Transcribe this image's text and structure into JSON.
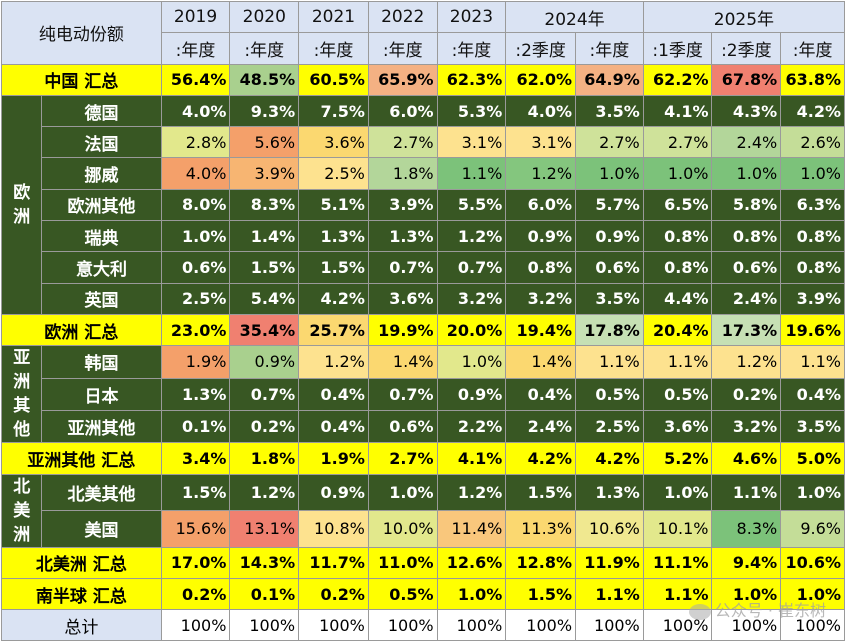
{
  "chart_data": {
    "type": "table",
    "corner": "纯电动份额",
    "year_headers": [
      {
        "label": "2019",
        "span": 1
      },
      {
        "label": "2020",
        "span": 1
      },
      {
        "label": "2021",
        "span": 1
      },
      {
        "label": "2022",
        "span": 1
      },
      {
        "label": "2023",
        "span": 1
      },
      {
        "label": "2024年",
        "span": 2
      },
      {
        "label": "2025年",
        "span": 3
      }
    ],
    "period_headers": [
      ":年度",
      ":年度",
      ":年度",
      ":年度",
      ":年度",
      ":2季度",
      ":年度",
      ":1季度",
      ":2季度",
      ":年度"
    ],
    "rows": [
      {
        "type": "total",
        "label": "中国 汇总",
        "values": [
          "56.4%",
          "48.5%",
          "60.5%",
          "65.9%",
          "62.3%",
          "62.0%",
          "64.9%",
          "62.2%",
          "67.8%",
          "63.8%"
        ],
        "colors": [
          "#ffff00",
          "#a9d08e",
          "#ffff00",
          "#f4b183",
          "#ffff00",
          "#ffff00",
          "#f4b183",
          "#ffff00",
          "#f08070",
          "#ffff00"
        ]
      },
      {
        "type": "detail",
        "region": "欧洲",
        "region_rows": 7,
        "label": "德国",
        "values": [
          "4.0%",
          "9.3%",
          "7.5%",
          "6.0%",
          "5.3%",
          "4.0%",
          "3.5%",
          "4.1%",
          "4.3%",
          "4.2%"
        ],
        "colors": [
          "#385723",
          "#385723",
          "#385723",
          "#385723",
          "#385723",
          "#385723",
          "#385723",
          "#385723",
          "#385723",
          "#385723"
        ]
      },
      {
        "type": "detail",
        "label": "法国",
        "values": [
          "2.8%",
          "5.6%",
          "3.6%",
          "2.7%",
          "3.1%",
          "3.1%",
          "2.7%",
          "2.7%",
          "2.4%",
          "2.6%"
        ],
        "colors": [
          "#e2e88c",
          "#f4a06a",
          "#fbd870",
          "#cfe29a",
          "#fde28f",
          "#fde28f",
          "#cfe29a",
          "#cfe29a",
          "#b3d69a",
          "#c4dd98"
        ]
      },
      {
        "type": "detail",
        "label": "挪威",
        "values": [
          "4.0%",
          "3.9%",
          "2.5%",
          "1.8%",
          "1.1%",
          "1.2%",
          "1.0%",
          "1.0%",
          "1.0%",
          "1.0%"
        ],
        "colors": [
          "#f4a06a",
          "#f7b572",
          "#fde28f",
          "#b3d69a",
          "#7cc27a",
          "#84c67e",
          "#7cc27a",
          "#7cc27a",
          "#7cc27a",
          "#7cc27a"
        ]
      },
      {
        "type": "detail",
        "label": "欧洲其他",
        "values": [
          "8.0%",
          "8.3%",
          "5.1%",
          "3.9%",
          "5.5%",
          "6.0%",
          "5.7%",
          "6.5%",
          "5.8%",
          "6.3%"
        ],
        "colors": [
          "#385723",
          "#385723",
          "#385723",
          "#385723",
          "#385723",
          "#385723",
          "#385723",
          "#385723",
          "#385723",
          "#385723"
        ]
      },
      {
        "type": "detail",
        "label": "瑞典",
        "values": [
          "1.0%",
          "1.4%",
          "1.3%",
          "1.3%",
          "1.2%",
          "0.9%",
          "0.9%",
          "0.8%",
          "0.8%",
          "0.8%"
        ],
        "colors": [
          "#385723",
          "#385723",
          "#385723",
          "#385723",
          "#385723",
          "#385723",
          "#385723",
          "#385723",
          "#385723",
          "#385723"
        ]
      },
      {
        "type": "detail",
        "label": "意大利",
        "values": [
          "0.6%",
          "1.5%",
          "1.5%",
          "0.7%",
          "0.7%",
          "0.8%",
          "0.6%",
          "0.8%",
          "0.6%",
          "0.8%"
        ],
        "colors": [
          "#385723",
          "#385723",
          "#385723",
          "#385723",
          "#385723",
          "#385723",
          "#385723",
          "#385723",
          "#385723",
          "#385723"
        ]
      },
      {
        "type": "detail",
        "label": "英国",
        "values": [
          "2.5%",
          "5.4%",
          "4.2%",
          "3.6%",
          "3.2%",
          "3.2%",
          "3.5%",
          "4.4%",
          "2.4%",
          "3.9%"
        ],
        "colors": [
          "#385723",
          "#385723",
          "#385723",
          "#385723",
          "#385723",
          "#385723",
          "#385723",
          "#385723",
          "#385723",
          "#385723"
        ]
      },
      {
        "type": "total",
        "label": "欧洲 汇总",
        "values": [
          "23.0%",
          "35.4%",
          "25.7%",
          "19.9%",
          "20.0%",
          "19.4%",
          "17.8%",
          "20.4%",
          "17.3%",
          "19.6%"
        ],
        "colors": [
          "#ffff00",
          "#f08070",
          "#fbd870",
          "#ffff00",
          "#ffff00",
          "#ffff00",
          "#c6e0b4",
          "#ffff00",
          "#c6e0b4",
          "#ffff00"
        ]
      },
      {
        "type": "detail",
        "region": "亚洲其他",
        "region_rows": 3,
        "label": "韩国",
        "values": [
          "1.9%",
          "0.9%",
          "1.2%",
          "1.4%",
          "1.0%",
          "1.4%",
          "1.1%",
          "1.1%",
          "1.2%",
          "1.1%"
        ],
        "colors": [
          "#f4a06a",
          "#a9d08e",
          "#fde28f",
          "#fbd870",
          "#e2e88c",
          "#fbd870",
          "#fde28f",
          "#fde28f",
          "#fde28f",
          "#fde28f"
        ]
      },
      {
        "type": "detail",
        "label": "日本",
        "values": [
          "1.3%",
          "0.7%",
          "0.4%",
          "0.7%",
          "0.9%",
          "0.4%",
          "0.5%",
          "0.5%",
          "0.2%",
          "0.4%"
        ],
        "colors": [
          "#385723",
          "#385723",
          "#385723",
          "#385723",
          "#385723",
          "#385723",
          "#385723",
          "#385723",
          "#385723",
          "#385723"
        ]
      },
      {
        "type": "detail",
        "label": "亚洲其他",
        "values": [
          "0.1%",
          "0.2%",
          "0.4%",
          "0.6%",
          "2.2%",
          "2.4%",
          "2.5%",
          "3.6%",
          "3.2%",
          "3.5%"
        ],
        "colors": [
          "#385723",
          "#385723",
          "#385723",
          "#385723",
          "#385723",
          "#385723",
          "#385723",
          "#385723",
          "#385723",
          "#385723"
        ]
      },
      {
        "type": "total",
        "label": "亚洲其他 汇总",
        "values": [
          "3.4%",
          "1.8%",
          "1.9%",
          "2.7%",
          "4.1%",
          "4.2%",
          "4.2%",
          "5.2%",
          "4.6%",
          "5.0%"
        ],
        "colors": [
          "#ffff00",
          "#ffff00",
          "#ffff00",
          "#ffff00",
          "#ffff00",
          "#ffff00",
          "#ffff00",
          "#ffff00",
          "#ffff00",
          "#ffff00"
        ]
      },
      {
        "type": "detail",
        "region": "北美洲",
        "region_rows": 2,
        "label": "北美其他",
        "values": [
          "1.5%",
          "1.2%",
          "0.9%",
          "1.0%",
          "1.2%",
          "1.5%",
          "1.3%",
          "1.0%",
          "1.1%",
          "1.0%"
        ],
        "colors": [
          "#385723",
          "#385723",
          "#385723",
          "#385723",
          "#385723",
          "#385723",
          "#385723",
          "#385723",
          "#385723",
          "#385723"
        ]
      },
      {
        "type": "detail",
        "label": "美国",
        "values": [
          "15.6%",
          "13.1%",
          "10.8%",
          "10.0%",
          "11.4%",
          "11.3%",
          "10.6%",
          "10.1%",
          "8.3%",
          "9.6%"
        ],
        "colors": [
          "#f4a06a",
          "#f08070",
          "#fde28f",
          "#e2e88c",
          "#f9c77c",
          "#fbd870",
          "#f0e890",
          "#e2e88c",
          "#7cc27a",
          "#c4dd98"
        ]
      },
      {
        "type": "total",
        "label": "北美洲 汇总",
        "values": [
          "17.0%",
          "14.3%",
          "11.7%",
          "11.0%",
          "12.6%",
          "12.8%",
          "11.9%",
          "11.1%",
          "9.4%",
          "10.6%"
        ],
        "colors": [
          "#ffff00",
          "#ffff00",
          "#ffff00",
          "#ffff00",
          "#ffff00",
          "#ffff00",
          "#ffff00",
          "#ffff00",
          "#ffff00",
          "#ffff00"
        ]
      },
      {
        "type": "total",
        "label": "南半球 汇总",
        "values": [
          "0.2%",
          "0.1%",
          "0.2%",
          "0.5%",
          "1.0%",
          "1.5%",
          "1.1%",
          "1.1%",
          "1.0%",
          "1.0%"
        ],
        "colors": [
          "#ffff00",
          "#ffff00",
          "#ffff00",
          "#ffff00",
          "#ffff00",
          "#ffff00",
          "#ffff00",
          "#ffff00",
          "#ffff00",
          "#ffff00"
        ]
      },
      {
        "type": "grand",
        "label": "总计",
        "values": [
          "100%",
          "100%",
          "100%",
          "100%",
          "100%",
          "100%",
          "100%",
          "100%",
          "100%",
          "100%"
        ],
        "colors": [
          "#ffffff",
          "#ffffff",
          "#ffffff",
          "#ffffff",
          "#ffffff",
          "#ffffff",
          "#ffffff",
          "#ffffff",
          "#ffffff",
          "#ffffff"
        ]
      }
    ]
  },
  "watermark": {
    "text": "公众号 · 崔东树",
    "icon": "wechat-icon"
  }
}
